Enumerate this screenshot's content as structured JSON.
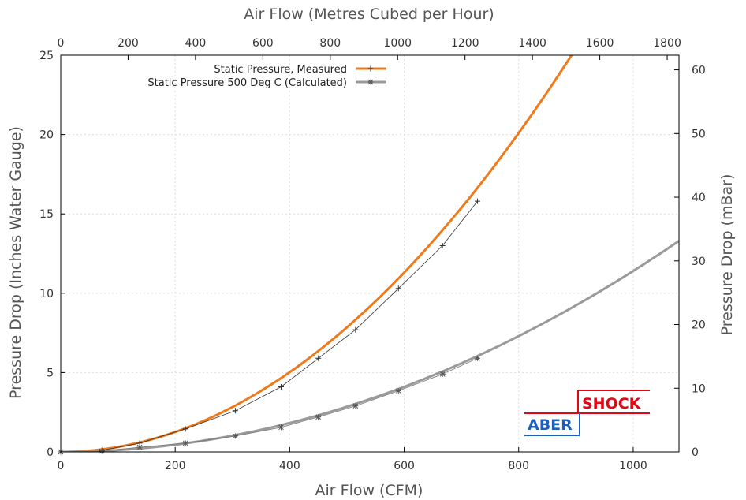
{
  "chart_data": {
    "type": "line",
    "title": "",
    "xlabel": "Air Flow (CFM)",
    "ylabel": "Pressure Drop (Inches Water Gauge)",
    "x2label": "Air Flow (Metres Cubed per Hour)",
    "y2label": "Pressure Drop (mBar)",
    "xlim": [
      0,
      1080
    ],
    "ylim": [
      0,
      25
    ],
    "x2lim": [
      0,
      1835
    ],
    "y2lim": [
      0,
      62.3
    ],
    "x_ticks": [
      0,
      200,
      400,
      600,
      800,
      1000
    ],
    "y_ticks": [
      0,
      5,
      10,
      15,
      20,
      25
    ],
    "x2_ticks": [
      0,
      200,
      400,
      600,
      800,
      1000,
      1200,
      1400,
      1600,
      1800
    ],
    "y2_ticks": [
      0,
      10,
      20,
      30,
      40,
      50,
      60
    ],
    "grid": true,
    "legend_position": "top-left",
    "series": [
      {
        "name": "Static Pressure, Measured",
        "color": "#f07a1a",
        "fit_coefficient": 3.14e-05,
        "fit_exponent": 2,
        "fit_x_range": [
          0,
          910
        ],
        "points": [
          {
            "x": 0,
            "y": 0
          },
          {
            "x": 72,
            "y": 0.1
          },
          {
            "x": 138,
            "y": 0.55
          },
          {
            "x": 218,
            "y": 1.45
          },
          {
            "x": 305,
            "y": 2.6
          },
          {
            "x": 385,
            "y": 4.1
          },
          {
            "x": 450,
            "y": 5.9
          },
          {
            "x": 515,
            "y": 7.7
          },
          {
            "x": 590,
            "y": 10.3
          },
          {
            "x": 667,
            "y": 13.0
          },
          {
            "x": 728,
            "y": 15.8
          }
        ]
      },
      {
        "name": "Static Pressure 500 Deg C (Calculated)",
        "color": "#9a9a9a",
        "fit_coefficient": 1.14e-05,
        "fit_exponent": 2,
        "fit_x_range": [
          0,
          1080
        ],
        "points": [
          {
            "x": 0,
            "y": 0
          },
          {
            "x": 72,
            "y": 0.05
          },
          {
            "x": 138,
            "y": 0.3
          },
          {
            "x": 218,
            "y": 0.55
          },
          {
            "x": 305,
            "y": 1.0
          },
          {
            "x": 385,
            "y": 1.55
          },
          {
            "x": 450,
            "y": 2.2
          },
          {
            "x": 515,
            "y": 2.9
          },
          {
            "x": 590,
            "y": 3.85
          },
          {
            "x": 667,
            "y": 4.9
          },
          {
            "x": 728,
            "y": 5.9
          }
        ]
      }
    ]
  },
  "logo": {
    "top_word": "SHOCK",
    "bottom_word": "ABER",
    "top_color": "#e30613",
    "bottom_color": "#1f5fbf"
  }
}
